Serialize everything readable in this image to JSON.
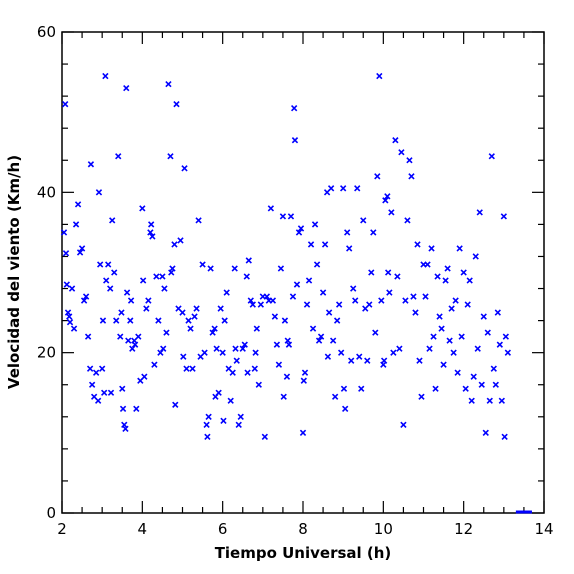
{
  "chart_data": {
    "type": "scatter",
    "title": "",
    "xlabel": "Tiempo Universal (h)",
    "ylabel": "Velocidad del viento (Km/h)",
    "xlim": [
      2,
      14
    ],
    "ylim": [
      0,
      60
    ],
    "x_ticks": [
      2,
      4,
      6,
      8,
      10,
      12,
      14
    ],
    "y_ticks": [
      0,
      20,
      40,
      60
    ],
    "x_tick_labels": [
      "2",
      "4",
      "6",
      "8",
      "10",
      "12",
      "14"
    ],
    "y_tick_labels": [
      "0",
      "20",
      "40",
      "60"
    ],
    "grid": false,
    "marker_color": "#0000ff",
    "marker": "x",
    "baseline_segment": {
      "x": [
        13.3,
        13.7
      ],
      "y": 0
    },
    "points": [
      [
        2.05,
        35.0
      ],
      [
        2.08,
        51.0
      ],
      [
        2.1,
        32.4
      ],
      [
        2.12,
        28.5
      ],
      [
        2.15,
        25.0
      ],
      [
        2.18,
        24.5
      ],
      [
        2.2,
        23.8
      ],
      [
        2.25,
        28.0
      ],
      [
        2.3,
        23.0
      ],
      [
        2.35,
        36.0
      ],
      [
        2.4,
        38.5
      ],
      [
        2.45,
        32.5
      ],
      [
        2.5,
        33.0
      ],
      [
        2.55,
        26.5
      ],
      [
        2.6,
        27.0
      ],
      [
        2.65,
        22.0
      ],
      [
        2.7,
        18.0
      ],
      [
        2.72,
        43.5
      ],
      [
        2.75,
        16.0
      ],
      [
        2.8,
        14.5
      ],
      [
        2.85,
        17.5
      ],
      [
        2.9,
        14.0
      ],
      [
        2.92,
        40.0
      ],
      [
        2.95,
        31.0
      ],
      [
        3.0,
        18.0
      ],
      [
        3.02,
        24.0
      ],
      [
        3.05,
        15.0
      ],
      [
        3.08,
        54.5
      ],
      [
        3.1,
        29.0
      ],
      [
        3.15,
        31.0
      ],
      [
        3.2,
        28.0
      ],
      [
        3.22,
        15.0
      ],
      [
        3.25,
        36.5
      ],
      [
        3.3,
        30.0
      ],
      [
        3.35,
        24.0
      ],
      [
        3.4,
        44.5
      ],
      [
        3.45,
        22.0
      ],
      [
        3.48,
        25.0
      ],
      [
        3.5,
        15.5
      ],
      [
        3.52,
        13.0
      ],
      [
        3.55,
        11.0
      ],
      [
        3.58,
        10.5
      ],
      [
        3.6,
        53.0
      ],
      [
        3.62,
        27.5
      ],
      [
        3.65,
        21.5
      ],
      [
        3.7,
        24.0
      ],
      [
        3.72,
        26.5
      ],
      [
        3.75,
        20.5
      ],
      [
        3.8,
        21.5
      ],
      [
        3.82,
        21.0
      ],
      [
        3.85,
        13.0
      ],
      [
        3.9,
        22.0
      ],
      [
        3.95,
        16.5
      ],
      [
        4.0,
        38.0
      ],
      [
        4.02,
        29.0
      ],
      [
        4.05,
        17.0
      ],
      [
        4.1,
        25.5
      ],
      [
        4.15,
        26.5
      ],
      [
        4.2,
        35.0
      ],
      [
        4.22,
        36.0
      ],
      [
        4.25,
        34.5
      ],
      [
        4.3,
        18.5
      ],
      [
        4.35,
        29.5
      ],
      [
        4.4,
        24.0
      ],
      [
        4.45,
        20.0
      ],
      [
        4.5,
        29.5
      ],
      [
        4.52,
        20.5
      ],
      [
        4.55,
        28.0
      ],
      [
        4.6,
        22.5
      ],
      [
        4.65,
        53.5
      ],
      [
        4.7,
        44.5
      ],
      [
        4.72,
        30.0
      ],
      [
        4.75,
        30.5
      ],
      [
        4.8,
        33.5
      ],
      [
        4.82,
        13.5
      ],
      [
        4.85,
        51.0
      ],
      [
        4.9,
        25.5
      ],
      [
        4.95,
        34.0
      ],
      [
        5.0,
        25.0
      ],
      [
        5.02,
        19.5
      ],
      [
        5.05,
        43.0
      ],
      [
        5.1,
        18.0
      ],
      [
        5.15,
        24.0
      ],
      [
        5.2,
        23.0
      ],
      [
        5.25,
        18.0
      ],
      [
        5.3,
        24.5
      ],
      [
        5.35,
        25.5
      ],
      [
        5.4,
        36.5
      ],
      [
        5.45,
        19.5
      ],
      [
        5.5,
        31.0
      ],
      [
        5.55,
        20.0
      ],
      [
        5.6,
        11.0
      ],
      [
        5.62,
        9.5
      ],
      [
        5.65,
        12.0
      ],
      [
        5.7,
        30.5
      ],
      [
        5.75,
        22.5
      ],
      [
        5.8,
        23.0
      ],
      [
        5.82,
        14.5
      ],
      [
        5.85,
        20.5
      ],
      [
        5.9,
        15.0
      ],
      [
        5.95,
        25.5
      ],
      [
        6.0,
        20.0
      ],
      [
        6.02,
        11.5
      ],
      [
        6.05,
        24.0
      ],
      [
        6.1,
        27.5
      ],
      [
        6.15,
        18.0
      ],
      [
        6.2,
        14.0
      ],
      [
        6.25,
        17.5
      ],
      [
        6.3,
        30.5
      ],
      [
        6.32,
        20.5
      ],
      [
        6.35,
        19.0
      ],
      [
        6.4,
        11.0
      ],
      [
        6.45,
        12.0
      ],
      [
        6.5,
        20.5
      ],
      [
        6.55,
        21.0
      ],
      [
        6.6,
        29.5
      ],
      [
        6.62,
        17.5
      ],
      [
        6.65,
        31.5
      ],
      [
        6.7,
        26.5
      ],
      [
        6.75,
        26.0
      ],
      [
        6.8,
        18.0
      ],
      [
        6.82,
        20.0
      ],
      [
        6.85,
        23.0
      ],
      [
        6.9,
        16.0
      ],
      [
        6.95,
        26.0
      ],
      [
        7.0,
        27.0
      ],
      [
        7.05,
        9.5
      ],
      [
        7.1,
        27.0
      ],
      [
        7.15,
        26.5
      ],
      [
        7.2,
        38.0
      ],
      [
        7.25,
        26.5
      ],
      [
        7.3,
        24.5
      ],
      [
        7.35,
        21.0
      ],
      [
        7.4,
        18.5
      ],
      [
        7.45,
        30.5
      ],
      [
        7.5,
        37.0
      ],
      [
        7.52,
        14.5
      ],
      [
        7.55,
        24.0
      ],
      [
        7.6,
        17.0
      ],
      [
        7.62,
        21.5
      ],
      [
        7.65,
        21.0
      ],
      [
        7.7,
        37.0
      ],
      [
        7.75,
        27.0
      ],
      [
        7.78,
        50.5
      ],
      [
        7.8,
        46.5
      ],
      [
        7.85,
        28.5
      ],
      [
        7.9,
        35.0
      ],
      [
        7.95,
        35.5
      ],
      [
        8.0,
        10.0
      ],
      [
        8.02,
        16.5
      ],
      [
        8.05,
        17.5
      ],
      [
        8.1,
        26.0
      ],
      [
        8.15,
        29.0
      ],
      [
        8.2,
        33.5
      ],
      [
        8.25,
        23.0
      ],
      [
        8.3,
        36.0
      ],
      [
        8.35,
        31.0
      ],
      [
        8.4,
        21.5
      ],
      [
        8.45,
        22.0
      ],
      [
        8.5,
        27.5
      ],
      [
        8.55,
        33.5
      ],
      [
        8.6,
        40.0
      ],
      [
        8.62,
        19.5
      ],
      [
        8.65,
        25.0
      ],
      [
        8.7,
        40.5
      ],
      [
        8.75,
        21.5
      ],
      [
        8.8,
        14.5
      ],
      [
        8.85,
        24.0
      ],
      [
        8.9,
        26.0
      ],
      [
        8.95,
        20.0
      ],
      [
        9.0,
        40.5
      ],
      [
        9.02,
        15.5
      ],
      [
        9.05,
        13.0
      ],
      [
        9.1,
        35.0
      ],
      [
        9.15,
        33.0
      ],
      [
        9.2,
        19.0
      ],
      [
        9.25,
        28.0
      ],
      [
        9.3,
        26.5
      ],
      [
        9.35,
        40.5
      ],
      [
        9.4,
        19.5
      ],
      [
        9.45,
        15.5
      ],
      [
        9.5,
        36.5
      ],
      [
        9.55,
        25.5
      ],
      [
        9.6,
        19.0
      ],
      [
        9.65,
        26.0
      ],
      [
        9.7,
        30.0
      ],
      [
        9.75,
        35.0
      ],
      [
        9.8,
        22.5
      ],
      [
        9.85,
        42.0
      ],
      [
        9.9,
        54.5
      ],
      [
        9.95,
        26.5
      ],
      [
        10.0,
        18.5
      ],
      [
        10.02,
        19.0
      ],
      [
        10.05,
        39.0
      ],
      [
        10.1,
        39.5
      ],
      [
        10.12,
        30.0
      ],
      [
        10.15,
        27.5
      ],
      [
        10.2,
        37.5
      ],
      [
        10.25,
        20.0
      ],
      [
        10.3,
        46.5
      ],
      [
        10.35,
        29.5
      ],
      [
        10.4,
        20.5
      ],
      [
        10.45,
        45.0
      ],
      [
        10.5,
        11.0
      ],
      [
        10.55,
        26.5
      ],
      [
        10.6,
        36.5
      ],
      [
        10.65,
        44.0
      ],
      [
        10.7,
        42.0
      ],
      [
        10.75,
        27.0
      ],
      [
        10.8,
        25.0
      ],
      [
        10.85,
        33.5
      ],
      [
        10.9,
        19.0
      ],
      [
        10.95,
        14.5
      ],
      [
        11.0,
        31.0
      ],
      [
        11.05,
        27.0
      ],
      [
        11.1,
        31.0
      ],
      [
        11.15,
        20.5
      ],
      [
        11.2,
        33.0
      ],
      [
        11.25,
        22.0
      ],
      [
        11.3,
        15.5
      ],
      [
        11.35,
        29.5
      ],
      [
        11.4,
        24.5
      ],
      [
        11.45,
        23.0
      ],
      [
        11.5,
        18.5
      ],
      [
        11.55,
        29.0
      ],
      [
        11.6,
        30.5
      ],
      [
        11.65,
        21.5
      ],
      [
        11.7,
        25.5
      ],
      [
        11.75,
        20.0
      ],
      [
        11.8,
        26.5
      ],
      [
        11.85,
        17.5
      ],
      [
        11.9,
        33.0
      ],
      [
        11.95,
        22.0
      ],
      [
        12.0,
        30.0
      ],
      [
        12.05,
        15.5
      ],
      [
        12.1,
        26.0
      ],
      [
        12.15,
        29.0
      ],
      [
        12.2,
        14.0
      ],
      [
        12.25,
        17.0
      ],
      [
        12.3,
        32.0
      ],
      [
        12.35,
        20.5
      ],
      [
        12.4,
        37.5
      ],
      [
        12.45,
        16.0
      ],
      [
        12.5,
        24.5
      ],
      [
        12.55,
        10.0
      ],
      [
        12.6,
        22.5
      ],
      [
        12.65,
        14.0
      ],
      [
        12.7,
        44.5
      ],
      [
        12.75,
        18.0
      ],
      [
        12.8,
        16.0
      ],
      [
        12.85,
        25.0
      ],
      [
        12.9,
        21.0
      ],
      [
        12.95,
        14.0
      ],
      [
        13.0,
        37.0
      ],
      [
        13.02,
        9.5
      ],
      [
        13.05,
        22.0
      ],
      [
        13.1,
        20.0
      ]
    ]
  }
}
